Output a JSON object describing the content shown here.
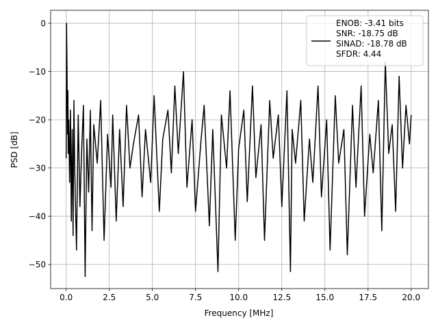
{
  "chart_data": {
    "type": "line",
    "title": "",
    "xlabel": "Frequency [MHz]",
    "ylabel": "PSD [dB]",
    "xlim": [
      -0.9,
      21.0
    ],
    "ylim": [
      -55,
      2.7
    ],
    "xticks": [
      0.0,
      2.5,
      5.0,
      7.5,
      10.0,
      12.5,
      15.0,
      17.5,
      20.0
    ],
    "xtick_labels": [
      "0.0",
      "2.5",
      "5.0",
      "7.5",
      "10.0",
      "12.5",
      "15.0",
      "17.5",
      "20.0"
    ],
    "yticks": [
      0,
      -10,
      -20,
      -30,
      -40,
      -50
    ],
    "ytick_labels": [
      "0",
      "−10",
      "−20",
      "−30",
      "−40",
      "−50"
    ],
    "grid": true,
    "legend_position": "top-right",
    "line_color": "#000000",
    "grid_color": "#b0b0b0",
    "series": [
      {
        "name": "ENOB: -3.41 bits\nSNR: -18.75 dB\nSINAD: -18.78 dB\nSFDR: 4.44",
        "x": [
          0.0,
          0.02,
          0.05,
          0.08,
          0.1,
          0.12,
          0.15,
          0.2,
          0.25,
          0.3,
          0.35,
          0.4,
          0.45,
          0.5,
          0.6,
          0.7,
          0.8,
          0.9,
          1.0,
          1.1,
          1.2,
          1.3,
          1.4,
          1.5,
          1.6,
          1.8,
          2.0,
          2.2,
          2.4,
          2.6,
          2.7,
          2.9,
          3.1,
          3.3,
          3.5,
          3.7,
          3.9,
          4.2,
          4.4,
          4.6,
          4.9,
          5.1,
          5.4,
          5.6,
          5.9,
          6.1,
          6.3,
          6.5,
          6.8,
          7.0,
          7.3,
          7.5,
          7.8,
          8.0,
          8.3,
          8.5,
          8.8,
          9.0,
          9.3,
          9.5,
          9.8,
          10.0,
          10.3,
          10.5,
          10.8,
          11.0,
          11.3,
          11.5,
          11.8,
          12.0,
          12.3,
          12.5,
          12.8,
          13.0,
          13.1,
          13.3,
          13.6,
          13.8,
          14.1,
          14.3,
          14.6,
          14.8,
          15.1,
          15.3,
          15.6,
          15.8,
          16.1,
          16.3,
          16.6,
          16.8,
          17.1,
          17.3,
          17.6,
          17.8,
          18.1,
          18.3,
          18.5,
          18.7,
          18.9,
          19.1,
          19.3,
          19.5,
          19.7,
          19.9,
          20.0
        ],
        "y": [
          -28,
          0,
          -9,
          -23,
          -14,
          -27,
          -20,
          -33,
          -18,
          -41,
          -22,
          -44,
          -16,
          -31,
          -47,
          -19,
          -38,
          -26,
          -17,
          -52.5,
          -24,
          -35,
          -18,
          -43,
          -21,
          -29,
          -16,
          -45,
          -23,
          -34,
          -19,
          -41,
          -22,
          -38,
          -17,
          -30,
          -25,
          -19,
          -36,
          -22,
          -33,
          -15,
          -39,
          -24,
          -18,
          -31,
          -13,
          -27,
          -10,
          -34,
          -20,
          -39,
          -25,
          -17,
          -42,
          -22,
          -51.5,
          -19,
          -30,
          -14,
          -45,
          -26,
          -18,
          -37,
          -13,
          -32,
          -21,
          -45,
          -16,
          -28,
          -19,
          -38,
          -14,
          -51.5,
          -22,
          -29,
          -16,
          -41,
          -24,
          -33,
          -13,
          -36,
          -20,
          -47,
          -15,
          -29,
          -22,
          -48,
          -17,
          -34,
          -13,
          -40,
          -23,
          -31,
          -16,
          -43,
          -8,
          -27,
          -21,
          -39,
          -11,
          -30,
          -17,
          -25,
          -19
        ]
      }
    ]
  },
  "legend": {
    "lines": [
      "ENOB: -3.41 bits",
      "SNR: -18.75 dB",
      "SINAD: -18.78 dB",
      "SFDR: 4.44"
    ]
  }
}
